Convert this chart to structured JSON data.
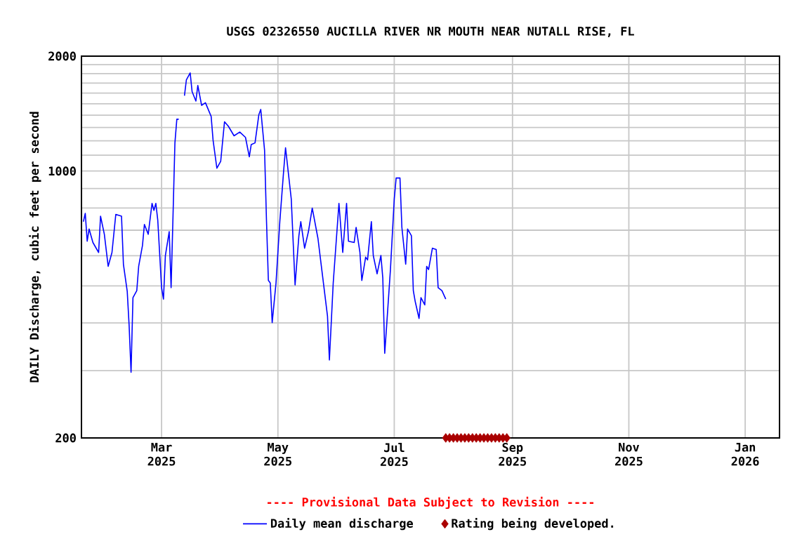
{
  "chart_data": {
    "type": "line",
    "title": "USGS 02326550 AUCILLA RIVER NR MOUTH NEAR NUTALL RISE, FL",
    "ylabel": "DAILY Discharge, cubic feet per second",
    "annotations": [
      "---- Provisional Data Subject to Revision ----"
    ],
    "log": "y",
    "grid": true,
    "legend": "bottom",
    "xlim": [
      "2025-01-18",
      "2026-01-19"
    ],
    "xticks": [
      {
        "value": "2025-03-01",
        "label": "Mar 2025"
      },
      {
        "value": "2025-05-01",
        "label": "May 2025"
      },
      {
        "value": "2025-07-01",
        "label": "Jul 2025"
      },
      {
        "value": "2025-09-01",
        "label": "Sep 2025"
      },
      {
        "value": "2025-11-01",
        "label": "Nov 2025"
      },
      {
        "value": "2026-01-01",
        "label": "Jan 2026"
      }
    ],
    "ylim": [
      200,
      2000
    ],
    "yticks": [
      200,
      {
        "value": 300,
        "label": null
      },
      {
        "value": 400,
        "label": null
      },
      {
        "value": 500,
        "label": null
      },
      {
        "value": 600,
        "label": null
      },
      {
        "value": 700,
        "label": null
      },
      {
        "value": 800,
        "label": null
      },
      {
        "value": 900,
        "label": null
      },
      1000,
      {
        "value": 1100,
        "label": null
      },
      {
        "value": 1200,
        "label": null
      },
      {
        "value": 1300,
        "label": null
      },
      {
        "value": 1400,
        "label": null
      },
      {
        "value": 1500,
        "label": null
      },
      {
        "value": 1600,
        "label": null
      },
      {
        "value": 1700,
        "label": null
      },
      {
        "value": 1800,
        "label": null
      },
      {
        "value": 1900,
        "label": null
      },
      2000
    ],
    "series": [
      {
        "name": "Daily mean discharge",
        "color": "#0000ff",
        "x": [
          "2025-01-19",
          "2025-01-20",
          "2025-01-21",
          "2025-01-22",
          "2025-01-24",
          "2025-01-27",
          "2025-01-28",
          "2025-01-30",
          "2025-02-01",
          "2025-02-03",
          "2025-02-05",
          "2025-02-08",
          "2025-02-09",
          "2025-02-11",
          "2025-02-12",
          "2025-02-13",
          "2025-02-14",
          "2025-02-16",
          "2025-02-17",
          "2025-02-19",
          "2025-02-20",
          "2025-02-22",
          "2025-02-24",
          "2025-02-25",
          "2025-02-26",
          "2025-02-27",
          "2025-03-01",
          "2025-03-02",
          "2025-03-03",
          "2025-03-05",
          "2025-03-06",
          "2025-03-07",
          "2025-03-08",
          "2025-03-09",
          "2025-03-10",
          "2025-03-11",
          "2025-03-13",
          "2025-03-14",
          "2025-03-16",
          "2025-03-17",
          "2025-03-19",
          "2025-03-20",
          "2025-03-22",
          "2025-03-24",
          "2025-03-27",
          "2025-03-28",
          "2025-03-30",
          "2025-04-01",
          "2025-04-03",
          "2025-04-05",
          "2025-04-08",
          "2025-04-11",
          "2025-04-14",
          "2025-04-16",
          "2025-04-17",
          "2025-04-19",
          "2025-04-21",
          "2025-04-22",
          "2025-04-24",
          "2025-04-25",
          "2025-04-26",
          "2025-04-27",
          "2025-04-28",
          "2025-04-30",
          "2025-05-02",
          "2025-05-04",
          "2025-05-05",
          "2025-05-08",
          "2025-05-10",
          "2025-05-12",
          "2025-05-13",
          "2025-05-15",
          "2025-05-17",
          "2025-05-19",
          "2025-05-22",
          "2025-05-24",
          "2025-05-27",
          "2025-05-28",
          "2025-05-30",
          "2025-06-02",
          "2025-06-04",
          "2025-06-06",
          "2025-06-07",
          "2025-06-10",
          "2025-06-11",
          "2025-06-13",
          "2025-06-14",
          "2025-06-16",
          "2025-06-17",
          "2025-06-19",
          "2025-06-20",
          "2025-06-22",
          "2025-06-24",
          "2025-06-25",
          "2025-06-26",
          "2025-06-27",
          "2025-06-29",
          "2025-07-01",
          "2025-07-02",
          "2025-07-04",
          "2025-07-05",
          "2025-07-07",
          "2025-07-08",
          "2025-07-10",
          "2025-07-11",
          "2025-07-12",
          "2025-07-14",
          "2025-07-15",
          "2025-07-17",
          "2025-07-18",
          "2025-07-19",
          "2025-07-21",
          "2025-07-23",
          "2025-07-24",
          "2025-07-26",
          "2025-07-28"
        ],
        "values": [
          737,
          775,
          655,
          705,
          650,
          612,
          762,
          683,
          563,
          612,
          770,
          762,
          570,
          484,
          393,
          297,
          466,
          486,
          563,
          639,
          725,
          683,
          823,
          789,
          823,
          745,
          495,
          462,
          601,
          694,
          495,
          762,
          1185,
          1367,
          1367,
          null,
          1575,
          1732,
          1808,
          1615,
          1525,
          1676,
          1486,
          1510,
          1390,
          1205,
          1017,
          1060,
          1346,
          1311,
          1237,
          1265,
          1225,
          1090,
          1173,
          1185,
          1404,
          1450,
          1134,
          745,
          517,
          509,
          401,
          509,
          737,
          1000,
          1151,
          845,
          503,
          677,
          737,
          628,
          694,
          800,
          666,
          552,
          417,
          320,
          509,
          823,
          612,
          823,
          655,
          650,
          712,
          612,
          517,
          595,
          585,
          737,
          601,
          538,
          601,
          524,
          333,
          393,
          552,
          845,
          959,
          959,
          712,
          570,
          705,
          677,
          486,
          455,
          411,
          466,
          446,
          563,
          552,
          628,
          623,
          495,
          486,
          462
        ]
      },
      {
        "name": "Rating being developed.",
        "type": "scatter",
        "color": "#aa0000",
        "marker": "diamond",
        "x": [
          "2025-07-28",
          "2025-07-30",
          "2025-08-01",
          "2025-08-03",
          "2025-08-05",
          "2025-08-07",
          "2025-08-09",
          "2025-08-11",
          "2025-08-13",
          "2025-08-15",
          "2025-08-17",
          "2025-08-19",
          "2025-08-21",
          "2025-08-23",
          "2025-08-25",
          "2025-08-27",
          "2025-08-29"
        ],
        "values": [
          200,
          200,
          200,
          200,
          200,
          200,
          200,
          200,
          200,
          200,
          200,
          200,
          200,
          200,
          200,
          200,
          200
        ]
      }
    ]
  }
}
